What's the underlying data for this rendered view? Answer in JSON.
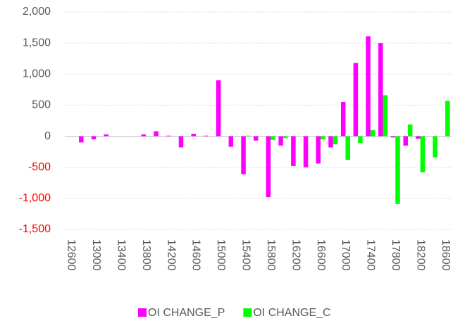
{
  "chart_data": {
    "type": "bar",
    "categories": [
      "12600",
      null,
      "13000",
      null,
      "13400",
      null,
      "13800",
      null,
      "14200",
      null,
      "14600",
      null,
      "15000",
      null,
      "15400",
      null,
      "15800",
      null,
      "16200",
      null,
      "16600",
      null,
      "17000",
      null,
      "17400",
      null,
      "17800",
      null,
      "18200",
      null,
      "18600"
    ],
    "series": [
      {
        "name": "OI CHANGE_P",
        "color": "#ff00ff",
        "values": [
          0,
          -100,
          -50,
          30,
          0,
          0,
          30,
          80,
          10,
          -180,
          40,
          10,
          900,
          -170,
          -610,
          -70,
          -980,
          -150,
          -480,
          -500,
          -440,
          -180,
          550,
          1180,
          1610,
          1500,
          -20,
          -150,
          -40,
          0,
          0
        ]
      },
      {
        "name": "OI CHANGE_C",
        "color": "#00ff00",
        "values": [
          0,
          0,
          0,
          0,
          0,
          0,
          0,
          0,
          0,
          0,
          0,
          0,
          0,
          0,
          10,
          0,
          -60,
          -30,
          0,
          0,
          -50,
          -130,
          -380,
          -110,
          100,
          660,
          -1090,
          190,
          -580,
          -340,
          570
        ]
      }
    ],
    "ylim": [
      -1500,
      2000
    ],
    "yticks": [
      {
        "value": -1500,
        "label": "-1,500"
      },
      {
        "value": -1000,
        "label": "-1,000"
      },
      -500,
      0,
      500,
      {
        "value": 1000,
        "label": "1,000"
      },
      {
        "value": 1500,
        "label": "1,500"
      },
      {
        "value": 2000,
        "label": "2,000"
      }
    ],
    "grid": true,
    "negative_tick_color": "#ff0000",
    "legend": "bottom"
  }
}
